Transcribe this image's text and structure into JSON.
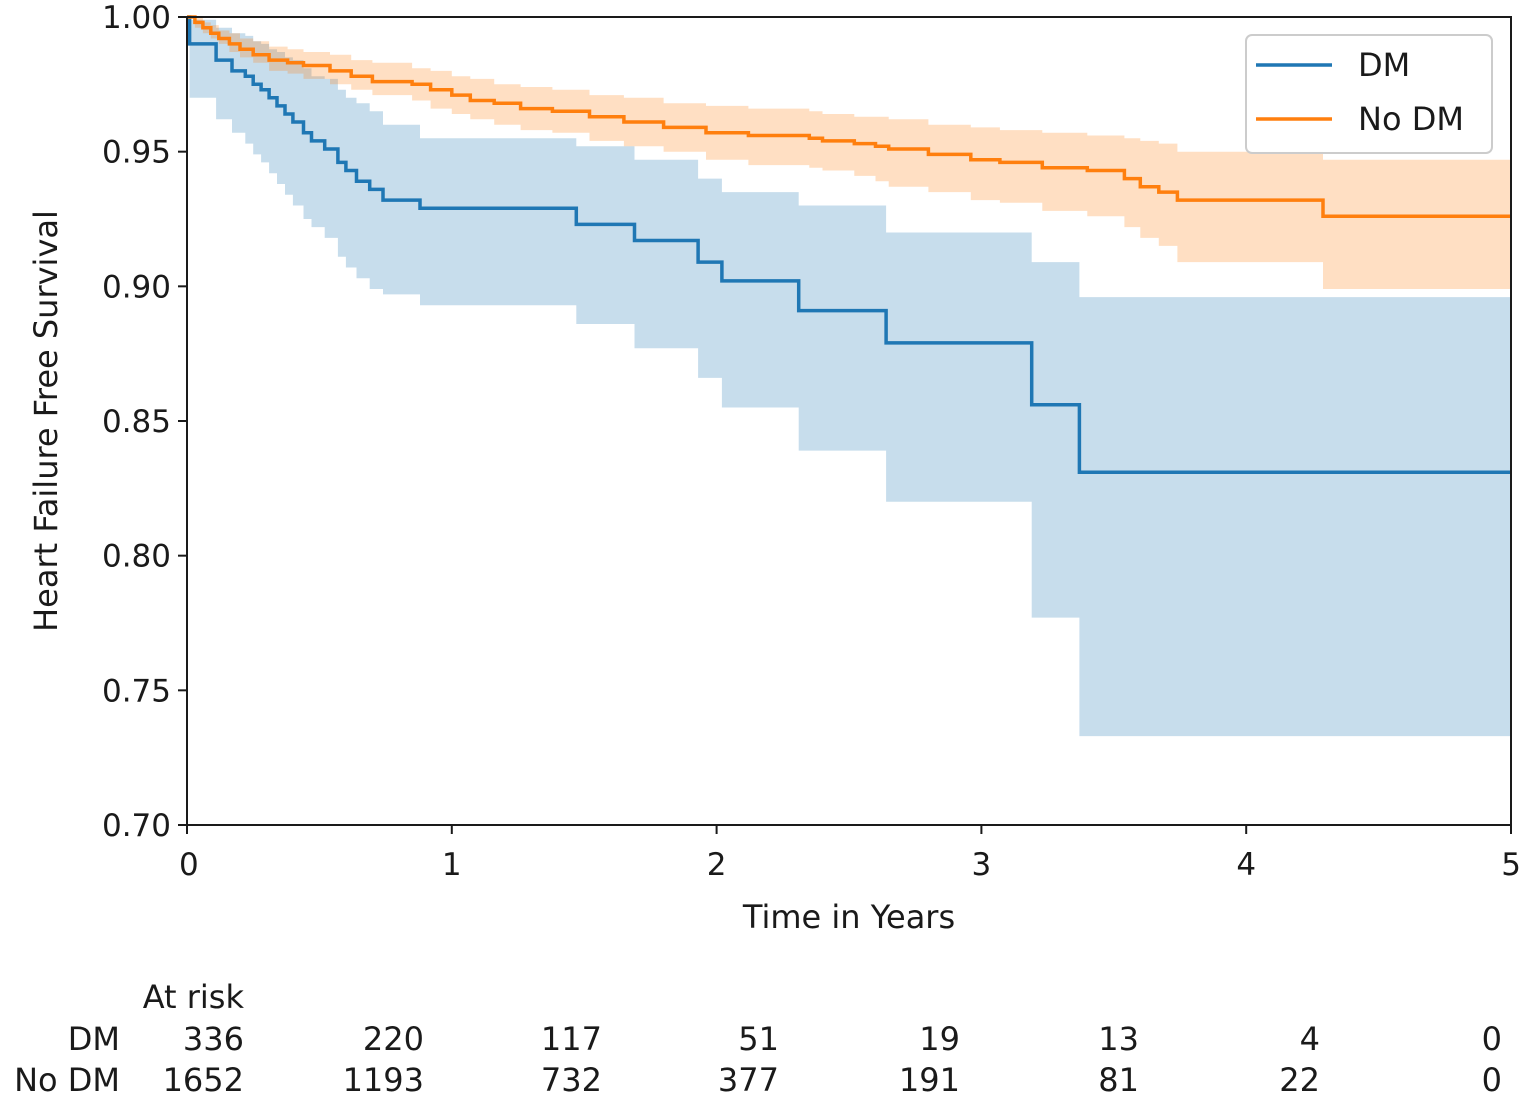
{
  "chart_data": {
    "type": "line",
    "subtype": "kaplan-meier",
    "title": "",
    "xlabel": "Time in Years",
    "ylabel": "Heart Failure Free Survival",
    "xlim": [
      0,
      5
    ],
    "ylim": [
      0.7,
      1.0
    ],
    "x_ticks": [
      0,
      1,
      2,
      3,
      4,
      5
    ],
    "x_tick_labels": [
      "0",
      "1",
      "2",
      "3",
      "4",
      "5"
    ],
    "y_ticks": [
      0.7,
      0.75,
      0.8,
      0.85,
      0.9,
      0.95,
      1.0
    ],
    "y_tick_labels": [
      "0.70",
      "0.75",
      "0.80",
      "0.85",
      "0.90",
      "0.95",
      "1.00"
    ],
    "grid": false,
    "legend_position": "top-right",
    "series": [
      {
        "name": "DM",
        "color": "#1f77b4",
        "band_color": "#1f77b4",
        "steps": [
          [
            0,
            1.0
          ],
          [
            0.01,
            0.99
          ],
          [
            0.11,
            0.984
          ],
          [
            0.17,
            0.98
          ],
          [
            0.22,
            0.978
          ],
          [
            0.25,
            0.975
          ],
          [
            0.28,
            0.973
          ],
          [
            0.31,
            0.97
          ],
          [
            0.34,
            0.967
          ],
          [
            0.37,
            0.964
          ],
          [
            0.4,
            0.961
          ],
          [
            0.44,
            0.957
          ],
          [
            0.47,
            0.954
          ],
          [
            0.52,
            0.951
          ],
          [
            0.55,
            0.951
          ],
          [
            0.57,
            0.946
          ],
          [
            0.6,
            0.943
          ],
          [
            0.64,
            0.939
          ],
          [
            0.69,
            0.936
          ],
          [
            0.74,
            0.932
          ],
          [
            0.88,
            0.929
          ],
          [
            1.47,
            0.923
          ],
          [
            1.69,
            0.917
          ],
          [
            1.93,
            0.909
          ],
          [
            2.02,
            0.902
          ],
          [
            2.31,
            0.891
          ],
          [
            2.64,
            0.879
          ],
          [
            3.19,
            0.856
          ],
          [
            3.37,
            0.831
          ],
          [
            5.0,
            0.831
          ]
        ],
        "ci_lower": [
          [
            0,
            1.0
          ],
          [
            0.01,
            0.97
          ],
          [
            0.11,
            0.962
          ],
          [
            0.17,
            0.957
          ],
          [
            0.22,
            0.953
          ],
          [
            0.25,
            0.949
          ],
          [
            0.28,
            0.946
          ],
          [
            0.31,
            0.942
          ],
          [
            0.34,
            0.938
          ],
          [
            0.37,
            0.934
          ],
          [
            0.4,
            0.93
          ],
          [
            0.44,
            0.925
          ],
          [
            0.47,
            0.922
          ],
          [
            0.52,
            0.918
          ],
          [
            0.55,
            0.918
          ],
          [
            0.57,
            0.911
          ],
          [
            0.6,
            0.907
          ],
          [
            0.64,
            0.903
          ],
          [
            0.69,
            0.899
          ],
          [
            0.74,
            0.897
          ],
          [
            0.88,
            0.893
          ],
          [
            1.47,
            0.886
          ],
          [
            1.69,
            0.877
          ],
          [
            1.93,
            0.866
          ],
          [
            2.02,
            0.855
          ],
          [
            2.31,
            0.839
          ],
          [
            2.64,
            0.82
          ],
          [
            3.19,
            0.777
          ],
          [
            3.37,
            0.733
          ],
          [
            5.0,
            0.733
          ]
        ],
        "ci_upper": [
          [
            0,
            1.0
          ],
          [
            0.01,
            0.999
          ],
          [
            0.11,
            0.996
          ],
          [
            0.17,
            0.994
          ],
          [
            0.22,
            0.993
          ],
          [
            0.25,
            0.991
          ],
          [
            0.28,
            0.99
          ],
          [
            0.31,
            0.988
          ],
          [
            0.34,
            0.987
          ],
          [
            0.37,
            0.985
          ],
          [
            0.4,
            0.984
          ],
          [
            0.44,
            0.981
          ],
          [
            0.47,
            0.978
          ],
          [
            0.52,
            0.977
          ],
          [
            0.55,
            0.977
          ],
          [
            0.57,
            0.973
          ],
          [
            0.6,
            0.97
          ],
          [
            0.64,
            0.968
          ],
          [
            0.69,
            0.965
          ],
          [
            0.74,
            0.96
          ],
          [
            0.88,
            0.955
          ],
          [
            1.47,
            0.952
          ],
          [
            1.69,
            0.947
          ],
          [
            1.93,
            0.94
          ],
          [
            2.02,
            0.935
          ],
          [
            2.31,
            0.93
          ],
          [
            2.64,
            0.92
          ],
          [
            3.19,
            0.909
          ],
          [
            3.37,
            0.896
          ],
          [
            5.0,
            0.896
          ]
        ]
      },
      {
        "name": "No DM",
        "color": "#ff7f0e",
        "band_color": "#ff7f0e",
        "steps": [
          [
            0,
            1.0
          ],
          [
            0.03,
            0.998
          ],
          [
            0.06,
            0.996
          ],
          [
            0.09,
            0.994
          ],
          [
            0.12,
            0.992
          ],
          [
            0.16,
            0.99
          ],
          [
            0.2,
            0.988
          ],
          [
            0.25,
            0.986
          ],
          [
            0.31,
            0.984
          ],
          [
            0.38,
            0.983
          ],
          [
            0.44,
            0.982
          ],
          [
            0.54,
            0.98
          ],
          [
            0.62,
            0.978
          ],
          [
            0.7,
            0.976
          ],
          [
            0.85,
            0.975
          ],
          [
            0.92,
            0.973
          ],
          [
            1.0,
            0.971
          ],
          [
            1.07,
            0.969
          ],
          [
            1.16,
            0.968
          ],
          [
            1.26,
            0.966
          ],
          [
            1.38,
            0.965
          ],
          [
            1.52,
            0.963
          ],
          [
            1.65,
            0.961
          ],
          [
            1.8,
            0.959
          ],
          [
            1.96,
            0.957
          ],
          [
            2.12,
            0.956
          ],
          [
            2.35,
            0.955
          ],
          [
            2.4,
            0.954
          ],
          [
            2.52,
            0.953
          ],
          [
            2.6,
            0.952
          ],
          [
            2.65,
            0.951
          ],
          [
            2.8,
            0.949
          ],
          [
            2.96,
            0.947
          ],
          [
            3.07,
            0.946
          ],
          [
            3.23,
            0.944
          ],
          [
            3.4,
            0.943
          ],
          [
            3.54,
            0.94
          ],
          [
            3.6,
            0.937
          ],
          [
            3.67,
            0.935
          ],
          [
            3.74,
            0.932
          ],
          [
            4.29,
            0.926
          ],
          [
            5.0,
            0.926
          ]
        ],
        "ci_lower": [
          [
            0,
            1.0
          ],
          [
            0.03,
            0.996
          ],
          [
            0.06,
            0.994
          ],
          [
            0.09,
            0.992
          ],
          [
            0.12,
            0.99
          ],
          [
            0.16,
            0.987
          ],
          [
            0.2,
            0.985
          ],
          [
            0.25,
            0.983
          ],
          [
            0.31,
            0.98
          ],
          [
            0.38,
            0.979
          ],
          [
            0.44,
            0.977
          ],
          [
            0.54,
            0.975
          ],
          [
            0.62,
            0.973
          ],
          [
            0.7,
            0.971
          ],
          [
            0.85,
            0.969
          ],
          [
            0.92,
            0.966
          ],
          [
            1.0,
            0.964
          ],
          [
            1.07,
            0.962
          ],
          [
            1.16,
            0.96
          ],
          [
            1.26,
            0.958
          ],
          [
            1.38,
            0.957
          ],
          [
            1.52,
            0.954
          ],
          [
            1.65,
            0.952
          ],
          [
            1.8,
            0.95
          ],
          [
            1.96,
            0.947
          ],
          [
            2.12,
            0.945
          ],
          [
            2.35,
            0.944
          ],
          [
            2.4,
            0.943
          ],
          [
            2.52,
            0.941
          ],
          [
            2.6,
            0.939
          ],
          [
            2.65,
            0.937
          ],
          [
            2.8,
            0.935
          ],
          [
            2.96,
            0.932
          ],
          [
            3.07,
            0.931
          ],
          [
            3.23,
            0.928
          ],
          [
            3.4,
            0.926
          ],
          [
            3.54,
            0.922
          ],
          [
            3.6,
            0.918
          ],
          [
            3.67,
            0.915
          ],
          [
            3.74,
            0.909
          ],
          [
            4.29,
            0.899
          ],
          [
            5.0,
            0.899
          ]
        ],
        "ci_upper": [
          [
            0,
            1.0
          ],
          [
            0.03,
            1.0
          ],
          [
            0.06,
            0.998
          ],
          [
            0.09,
            0.997
          ],
          [
            0.12,
            0.995
          ],
          [
            0.16,
            0.994
          ],
          [
            0.2,
            0.992
          ],
          [
            0.25,
            0.991
          ],
          [
            0.31,
            0.989
          ],
          [
            0.38,
            0.988
          ],
          [
            0.44,
            0.987
          ],
          [
            0.54,
            0.986
          ],
          [
            0.62,
            0.984
          ],
          [
            0.7,
            0.983
          ],
          [
            0.85,
            0.981
          ],
          [
            0.92,
            0.98
          ],
          [
            1.0,
            0.978
          ],
          [
            1.07,
            0.977
          ],
          [
            1.16,
            0.975
          ],
          [
            1.26,
            0.974
          ],
          [
            1.38,
            0.973
          ],
          [
            1.52,
            0.971
          ],
          [
            1.65,
            0.97
          ],
          [
            1.8,
            0.968
          ],
          [
            1.96,
            0.967
          ],
          [
            2.12,
            0.966
          ],
          [
            2.35,
            0.965
          ],
          [
            2.4,
            0.964
          ],
          [
            2.52,
            0.963
          ],
          [
            2.6,
            0.963
          ],
          [
            2.65,
            0.962
          ],
          [
            2.8,
            0.96
          ],
          [
            2.96,
            0.959
          ],
          [
            3.07,
            0.958
          ],
          [
            3.23,
            0.957
          ],
          [
            3.4,
            0.956
          ],
          [
            3.54,
            0.955
          ],
          [
            3.6,
            0.954
          ],
          [
            3.67,
            0.953
          ],
          [
            3.74,
            0.95
          ],
          [
            4.29,
            0.947
          ],
          [
            5.0,
            0.945
          ]
        ]
      }
    ],
    "at_risk": {
      "title": "At risk",
      "times": [
        0,
        0.67,
        1.33,
        2.0,
        2.67,
        3.33,
        4.0,
        5.0
      ],
      "rows": [
        {
          "label": "DM",
          "counts": [
            "336",
            "220",
            "117",
            "51",
            "19",
            "13",
            "4",
            "0"
          ]
        },
        {
          "label": "No DM",
          "counts": [
            "1652",
            "1193",
            "732",
            "377",
            "191",
            "81",
            "22",
            "0"
          ]
        }
      ]
    }
  }
}
